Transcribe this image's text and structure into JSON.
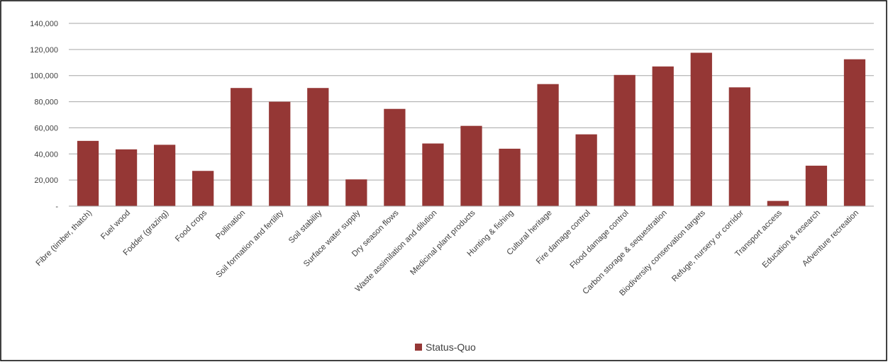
{
  "chart_data": {
    "type": "bar",
    "categories": [
      "Fibre (timber, thatch)",
      "Fuel wood",
      "Fodder (grazing)",
      "Food crops",
      "Pollination",
      "Soil formation and fertility",
      "Soil stability",
      "Surface water supply",
      "Dry season flows",
      "Waste assimilation and dilution",
      "Medicinal plant products",
      "Hunting & fishing",
      "Cultural heritage",
      "Fire damage control",
      "Flood damage control",
      "Carbon storage & sequestration",
      "Biodiversity conservation targets",
      "Refuge, nursery or corridor",
      "Transport access",
      "Education & research",
      "Adventure recreation"
    ],
    "series": [
      {
        "name": "Status-Quo",
        "color": "#953735",
        "values": [
          50000,
          43500,
          47000,
          27000,
          90500,
          80000,
          90500,
          20500,
          74500,
          48000,
          61500,
          44000,
          93500,
          55000,
          100500,
          107000,
          117500,
          91000,
          4000,
          31000,
          112500
        ]
      }
    ],
    "yticks": [
      "-",
      "20,000",
      "40,000",
      "60,000",
      "80,000",
      "100,000",
      "120,000",
      "140,000"
    ],
    "ylim": [
      0,
      140000
    ],
    "grid": true,
    "legend_position": "bottom",
    "title": "",
    "xlabel": "",
    "ylabel": ""
  }
}
